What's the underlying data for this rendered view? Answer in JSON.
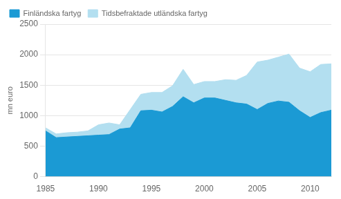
{
  "chart_data": {
    "type": "area",
    "y_label": "mn euro",
    "x": [
      1985,
      1986,
      1987,
      1988,
      1989,
      1990,
      1991,
      1992,
      1993,
      1994,
      1995,
      1996,
      1997,
      1998,
      1999,
      2000,
      2001,
      2002,
      2003,
      2004,
      2005,
      2006,
      2007,
      2008,
      2009,
      2010,
      2011,
      2012
    ],
    "series": [
      {
        "name": "Tidsbefraktade utländska fartyg",
        "color": "#b3dff0",
        "values": [
          800,
          700,
          720,
          730,
          750,
          850,
          880,
          850,
          1100,
          1350,
          1380,
          1380,
          1490,
          1760,
          1510,
          1560,
          1560,
          1590,
          1580,
          1660,
          1880,
          1910,
          1960,
          2010,
          1780,
          1720,
          1840,
          1850
        ]
      },
      {
        "name": "Finländska fartyg",
        "color": "#1b9ad4",
        "values": [
          750,
          640,
          650,
          660,
          670,
          680,
          690,
          780,
          800,
          1080,
          1090,
          1060,
          1150,
          1310,
          1210,
          1290,
          1290,
          1250,
          1210,
          1190,
          1100,
          1200,
          1240,
          1220,
          1080,
          970,
          1050,
          1090
        ]
      }
    ],
    "xlim": [
      1985,
      2012
    ],
    "xticks": [
      1985,
      1990,
      1995,
      2000,
      2005,
      2010
    ],
    "ylim": [
      0,
      2500
    ],
    "yticks": [
      0,
      500,
      1000,
      1500,
      2000,
      2500
    ],
    "grid": "y",
    "legend": "upper left"
  }
}
